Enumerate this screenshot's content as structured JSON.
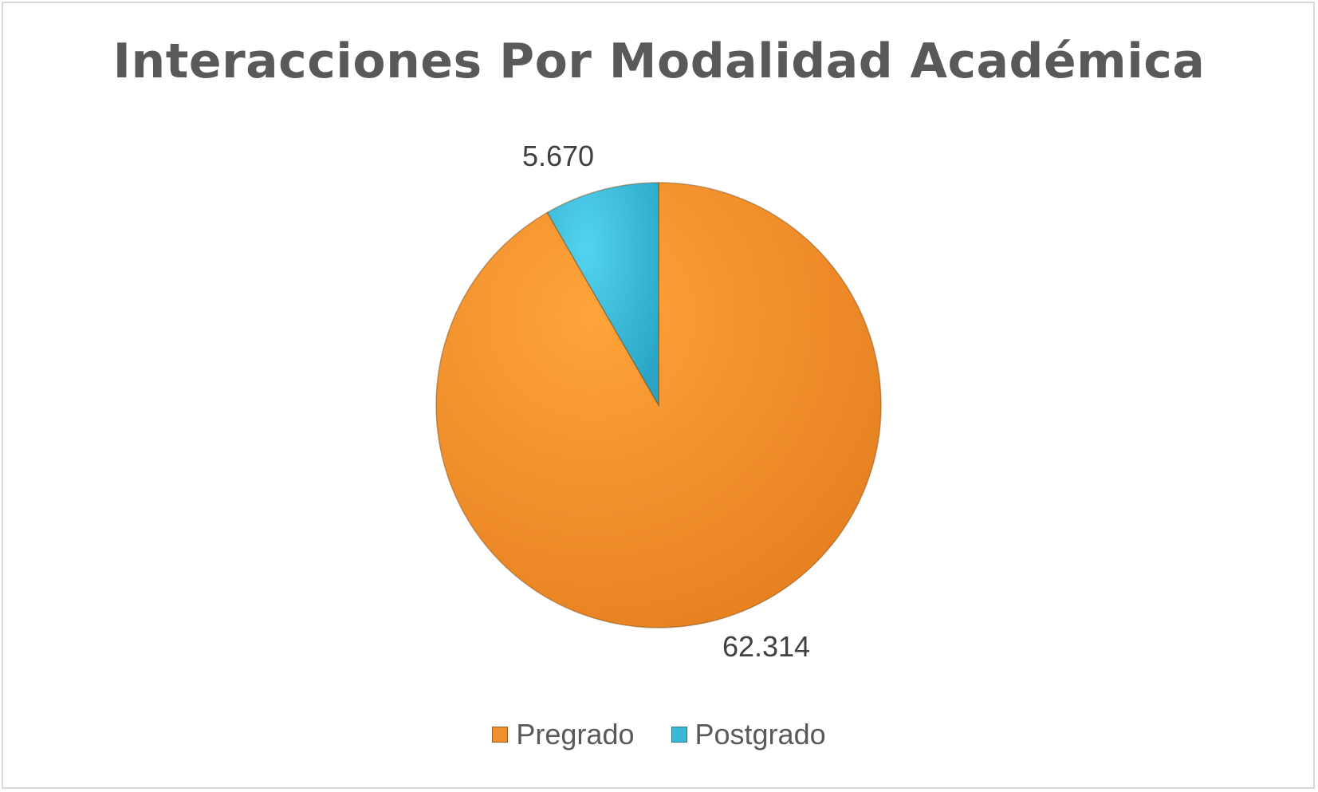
{
  "chart_data": {
    "type": "pie",
    "title": "Interacciones Por Modalidad Académica",
    "categories": [
      "Pregrado",
      "Postgrado"
    ],
    "values": [
      62314,
      5670
    ],
    "data_labels": [
      "62.314",
      "5.670"
    ],
    "colors": [
      "#f28e2b",
      "#3bb8d8"
    ],
    "legend_position": "bottom"
  }
}
